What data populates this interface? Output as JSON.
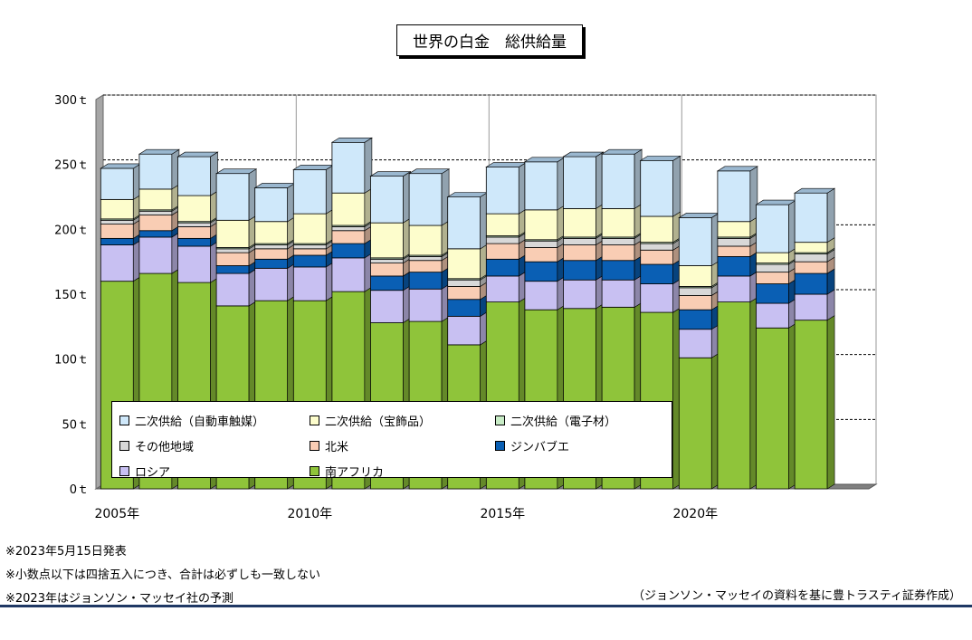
{
  "title": "世界の白金　総供給量",
  "chart_data": {
    "type": "bar",
    "stacked": true,
    "categories": [
      "2005年",
      "2006年",
      "2007年",
      "2008年",
      "2009年",
      "2010年",
      "2011年",
      "2012年",
      "2013年",
      "2014年",
      "2015年",
      "2016年",
      "2017年",
      "2018年",
      "2019年",
      "2020年",
      "2021年",
      "2022年",
      "2023年"
    ],
    "x_tick_labels": [
      "2005年",
      "2010年",
      "2015年",
      "2020年"
    ],
    "y_tick_labels": [
      "0ｔ",
      "50ｔ",
      "100ｔ",
      "150ｔ",
      "200ｔ",
      "250ｔ",
      "300ｔ"
    ],
    "ylim": [
      0,
      300
    ],
    "series": [
      {
        "name": "南アフリカ",
        "color": "#8fc43a",
        "values": [
          160,
          166,
          159,
          141,
          145,
          145,
          152,
          128,
          129,
          111,
          144,
          138,
          139,
          140,
          136,
          101,
          144,
          124,
          130
        ]
      },
      {
        "name": "ロシア",
        "color": "#c8c0f2",
        "values": [
          28,
          28,
          28,
          25,
          25,
          26,
          26,
          25,
          25,
          22,
          20,
          22,
          22,
          21,
          22,
          22,
          20,
          19,
          20
        ]
      },
      {
        "name": "ジンバブエ",
        "color": "#0a5fb4",
        "values": [
          5,
          5,
          6,
          6,
          7,
          9,
          11,
          11,
          13,
          13,
          13,
          15,
          15,
          15,
          15,
          15,
          15,
          15,
          16
        ]
      },
      {
        "name": "北米",
        "color": "#f9cdb4",
        "values": [
          11,
          12,
          9,
          10,
          8,
          5,
          10,
          10,
          9,
          10,
          12,
          11,
          12,
          12,
          11,
          11,
          8,
          9,
          9
        ]
      },
      {
        "name": "その他地域",
        "color": "#d8d8d8",
        "values": [
          3,
          3,
          3,
          3,
          3,
          3,
          3,
          3,
          3,
          5,
          5,
          5,
          5,
          5,
          5,
          6,
          6,
          6,
          6
        ]
      },
      {
        "name": "二次供給（電子材）",
        "color": "#c8ecc6",
        "values": [
          1,
          1,
          1,
          1,
          1,
          1,
          1,
          1,
          1,
          1,
          1,
          1,
          1,
          1,
          1,
          1,
          1,
          1,
          1
        ]
      },
      {
        "name": "二次供給（宝飾品）",
        "color": "#fdfdcc",
        "values": [
          15,
          16,
          20,
          21,
          17,
          23,
          25,
          27,
          23,
          23,
          17,
          23,
          22,
          22,
          20,
          16,
          12,
          8,
          8
        ]
      },
      {
        "name": "二次供給（自動車触媒）",
        "color": "#cfe8fa",
        "values": [
          24,
          27,
          30,
          36,
          26,
          34,
          39,
          36,
          40,
          40,
          36,
          37,
          40,
          42,
          43,
          37,
          39,
          37,
          38
        ]
      }
    ]
  },
  "legend_order": [
    "二次供給（自動車触媒）",
    "二次供給（宝飾品）",
    "二次供給（電子材）",
    "その他地域",
    "北米",
    "ジンバブエ",
    "ロシア",
    "南アフリカ"
  ],
  "notes": [
    "※2023年5月15日発表",
    "※小数点以下は四捨五入につき、合計は必ずしも一致しない",
    "※2023年はジョンソン・マッセイ社の予測"
  ],
  "source": "（ジョンソン・マッセイの資料を基に豊トラスティ証券作成）"
}
